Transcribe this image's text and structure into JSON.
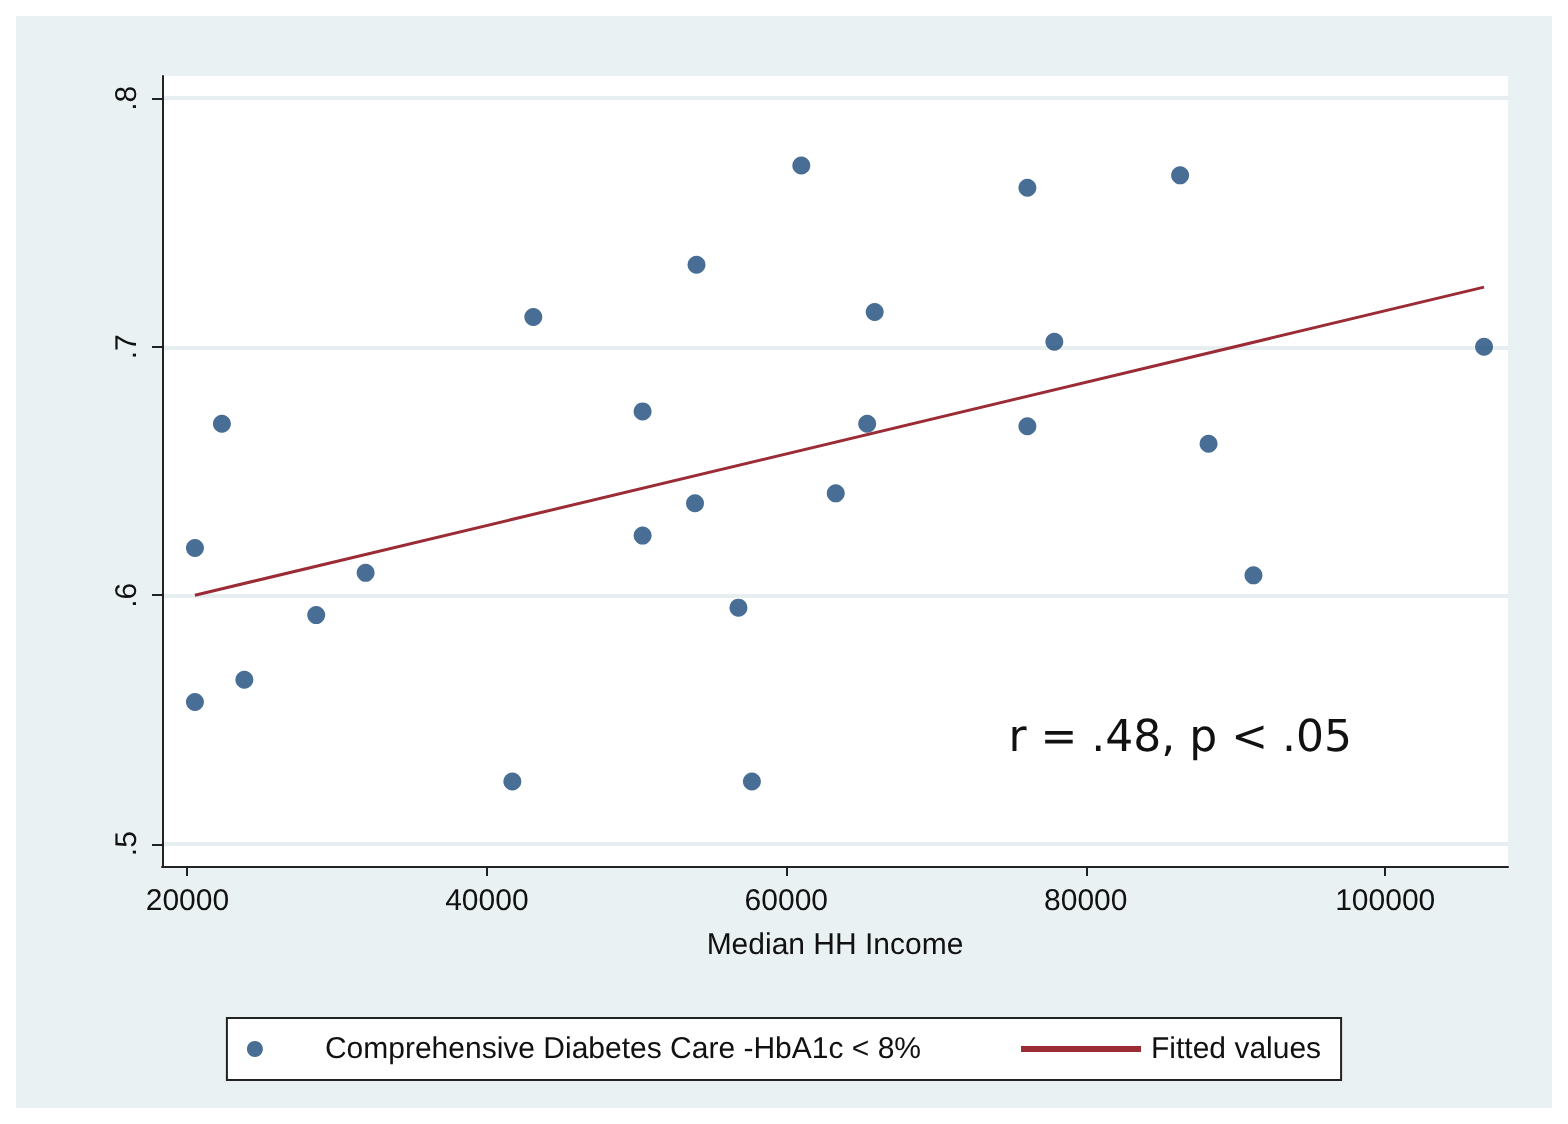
{
  "chart_data": {
    "type": "scatter",
    "xlabel": "Median HH Income",
    "annotations": [
      "r = .48, p < .05"
    ],
    "xlim": [
      18300,
      108200
    ],
    "xticks": [
      20000,
      40000,
      60000,
      80000,
      100000
    ],
    "ylim": [
      0.491,
      0.809
    ],
    "yticks": [
      {
        "value": 0.5,
        "label": ".5"
      },
      {
        "value": 0.6,
        "label": ".6"
      },
      {
        "value": 0.7,
        "label": ".7"
      },
      {
        "value": 0.8,
        "label": ".8"
      }
    ],
    "grid": "y",
    "legend": "bottom",
    "marker": "circle",
    "series": [
      {
        "name": "Comprehensive Diabetes Care -HbA1c < 8%",
        "color": "#1a4a7a",
        "x": [
          20500,
          20500,
          22300,
          23800,
          28600,
          31900,
          41700,
          43100,
          50400,
          50400,
          53900,
          54000,
          56800,
          57700,
          61000,
          63300,
          65400,
          65900,
          76100,
          76100,
          77900,
          86300,
          88200,
          91200,
          106600
        ],
        "values": [
          0.619,
          0.557,
          0.669,
          0.566,
          0.592,
          0.609,
          0.525,
          0.712,
          0.674,
          0.624,
          0.637,
          0.733,
          0.595,
          0.525,
          0.773,
          0.641,
          0.669,
          0.714,
          0.764,
          0.668,
          0.702,
          0.769,
          0.661,
          0.608,
          0.7
        ]
      },
      {
        "name": "Fitted values",
        "type": "line",
        "color": "#9b2b35",
        "x": [
          20500,
          106600
        ],
        "values": [
          0.6,
          0.724
        ],
        "line_style": "solid",
        "marker": "none"
      }
    ]
  }
}
